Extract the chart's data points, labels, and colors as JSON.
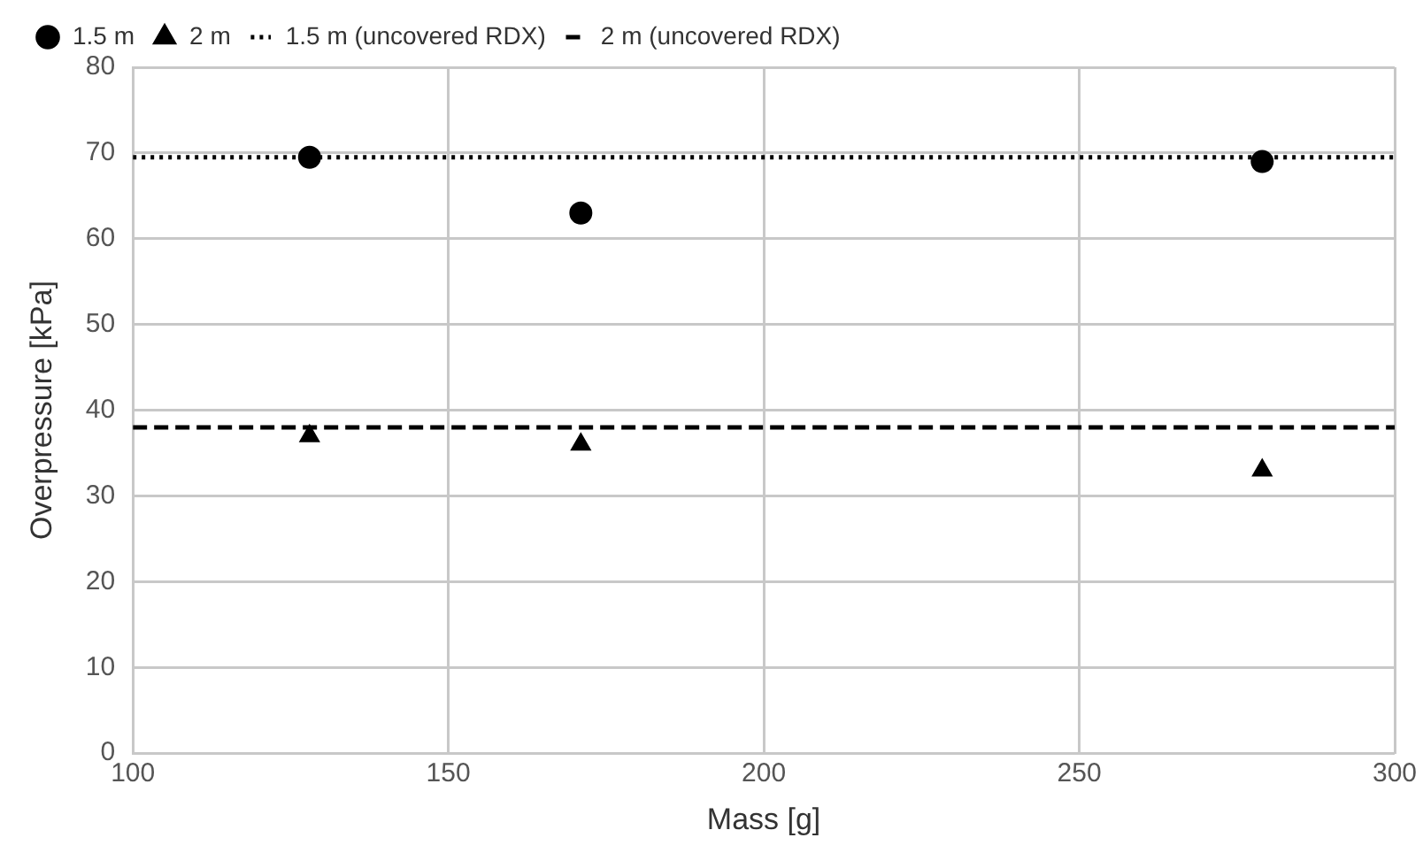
{
  "chart_data": {
    "type": "scatter",
    "xlabel": "Mass [g]",
    "ylabel": "Overpressure [kPa]",
    "xlim": [
      100,
      300
    ],
    "xticks": [
      100,
      150,
      200,
      250,
      300
    ],
    "ylim": [
      0,
      80
    ],
    "yticks": [
      0,
      10,
      20,
      30,
      40,
      50,
      60,
      70,
      80
    ],
    "grid": true,
    "legend": "top",
    "x": [
      128,
      171,
      279
    ],
    "series": [
      {
        "name": "1.5 m",
        "color": "#000000",
        "marker": "circle",
        "values": [
          69.5,
          63,
          69
        ]
      },
      {
        "name": "2 m",
        "color": "#000000",
        "marker": "triangle",
        "values": [
          37,
          36,
          33
        ]
      }
    ],
    "ref_lines": [
      {
        "axis": "y",
        "value": 69.5,
        "label": "1.5 m (uncovered RDX)",
        "color": "#000000",
        "line_style": "dotted"
      },
      {
        "axis": "y",
        "value": 38,
        "label": "2 m (uncovered RDX)",
        "color": "#000000",
        "line_style": "dashed"
      }
    ]
  }
}
